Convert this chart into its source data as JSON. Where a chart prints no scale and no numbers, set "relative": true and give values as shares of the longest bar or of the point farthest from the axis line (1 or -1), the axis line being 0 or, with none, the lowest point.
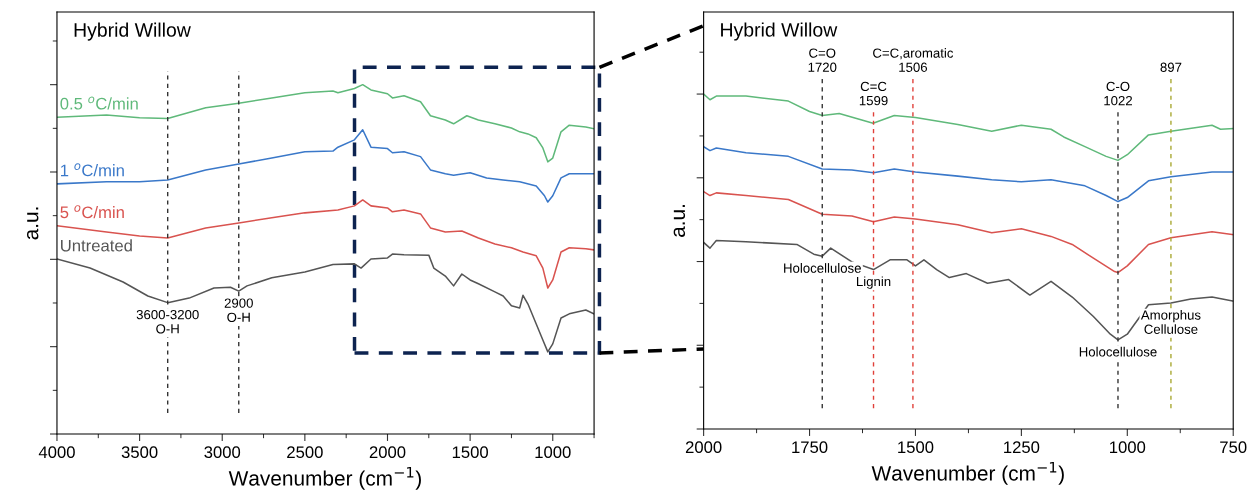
{
  "chart_data": [
    {
      "type": "line",
      "title": "Hybrid Willow",
      "xlabel": "Wavenumber (cm$^{−1}$)",
      "ylabel": "a.u.",
      "relative": true,
      "tick_labels": "x",
      "xlim": [
        4000,
        750
      ],
      "xticks": [
        4000,
        3500,
        3000,
        2500,
        2000,
        1500,
        1000
      ],
      "series": [
        {
          "name": "0.5 $^{o}$C/min",
          "color": "#5fb97a",
          "x": [
            4000,
            3700,
            3500,
            3330,
            3100,
            2900,
            2700,
            2500,
            2330,
            2300,
            2200,
            2150,
            2100,
            2000,
            1970,
            1900,
            1800,
            1740,
            1650,
            1600,
            1520,
            1450,
            1350,
            1250,
            1200,
            1150,
            1100,
            1060,
            1030,
            1000,
            950,
            900,
            800,
            750
          ],
          "values": [
            0.907,
            0.913,
            0.905,
            0.903,
            0.934,
            0.947,
            0.962,
            0.977,
            0.982,
            0.977,
            0.989,
            1.0,
            0.985,
            0.974,
            0.962,
            0.968,
            0.951,
            0.911,
            0.899,
            0.888,
            0.911,
            0.899,
            0.888,
            0.876,
            0.865,
            0.859,
            0.848,
            0.819,
            0.779,
            0.79,
            0.865,
            0.884,
            0.879,
            0.874
          ]
        },
        {
          "name": "1 $^{o}$C/min",
          "color": "#3a78c9",
          "x": [
            4000,
            3700,
            3500,
            3330,
            3100,
            2900,
            2700,
            2500,
            2330,
            2300,
            2200,
            2150,
            2100,
            2000,
            1970,
            1900,
            1800,
            1740,
            1650,
            1600,
            1500,
            1400,
            1300,
            1200,
            1100,
            1050,
            1030,
            1000,
            950,
            900,
            750
          ],
          "values": [
            0.716,
            0.722,
            0.722,
            0.727,
            0.756,
            0.773,
            0.79,
            0.808,
            0.81,
            0.821,
            0.842,
            0.871,
            0.821,
            0.817,
            0.805,
            0.808,
            0.794,
            0.756,
            0.745,
            0.741,
            0.748,
            0.733,
            0.727,
            0.722,
            0.71,
            0.682,
            0.664,
            0.682,
            0.733,
            0.745,
            0.745
          ]
        },
        {
          "name": "5 $^{o}$C/min",
          "color": "#d9534f",
          "x": [
            4000,
            3700,
            3500,
            3330,
            3100,
            2900,
            2700,
            2500,
            2300,
            2200,
            2150,
            2100,
            2000,
            1970,
            1900,
            1800,
            1740,
            1650,
            1550,
            1450,
            1350,
            1250,
            1180,
            1100,
            1060,
            1030,
            1000,
            950,
            900,
            800,
            750
          ],
          "values": [
            0.596,
            0.578,
            0.567,
            0.561,
            0.59,
            0.604,
            0.619,
            0.633,
            0.641,
            0.653,
            0.67,
            0.653,
            0.647,
            0.636,
            0.641,
            0.63,
            0.59,
            0.578,
            0.581,
            0.561,
            0.544,
            0.533,
            0.521,
            0.51,
            0.475,
            0.418,
            0.441,
            0.521,
            0.533,
            0.53,
            0.527
          ]
        },
        {
          "name": "Untreated",
          "color": "#555555",
          "x": [
            4000,
            3800,
            3600,
            3450,
            3330,
            3200,
            3050,
            2950,
            2900,
            2850,
            2700,
            2500,
            2330,
            2200,
            2160,
            2100,
            2000,
            1970,
            1900,
            1750,
            1720,
            1650,
            1600,
            1550,
            1500,
            1450,
            1350,
            1300,
            1250,
            1200,
            1180,
            1150,
            1100,
            1060,
            1030,
            1000,
            950,
            900,
            800,
            750
          ],
          "values": [
            0.501,
            0.475,
            0.435,
            0.395,
            0.376,
            0.389,
            0.418,
            0.42,
            0.409,
            0.424,
            0.447,
            0.464,
            0.485,
            0.487,
            0.475,
            0.501,
            0.504,
            0.515,
            0.513,
            0.512,
            0.475,
            0.452,
            0.424,
            0.458,
            0.441,
            0.43,
            0.407,
            0.395,
            0.367,
            0.361,
            0.397,
            0.372,
            0.315,
            0.269,
            0.235,
            0.258,
            0.332,
            0.344,
            0.355,
            0.344
          ]
        }
      ],
      "ref_lines": [
        {
          "axis": "x",
          "value": 3330,
          "color": "#333333",
          "line_style": "dashed"
        },
        {
          "axis": "x",
          "value": 2900,
          "color": "#333333",
          "line_style": "dashed"
        }
      ],
      "annotations": [
        {
          "text": "3600-3200\nO-H",
          "x": 3330,
          "y": 0.376
        },
        {
          "text": "2900\nO-H",
          "x": 2900,
          "y": 0.409
        }
      ]
    },
    {
      "type": "line",
      "title": "Hybrid Willow",
      "xlabel": "Wavenumber (cm$^{−1}$)",
      "ylabel": "a.u.",
      "relative": true,
      "tick_labels": "x",
      "xlim": [
        2000,
        750
      ],
      "xticks": [
        2000,
        1750,
        1500,
        1250,
        1000,
        750
      ],
      "series": [
        {
          "color": "#5fb97a",
          "x": [
            2000,
            1985,
            1970,
            1900,
            1800,
            1750,
            1720,
            1680,
            1600,
            1550,
            1500,
            1400,
            1320,
            1250,
            1180,
            1150,
            1100,
            1050,
            1022,
            1000,
            950,
            897,
            800,
            780,
            750
          ],
          "values": [
            1.0,
            0.983,
            0.994,
            0.994,
            0.979,
            0.948,
            0.936,
            0.942,
            0.913,
            0.936,
            0.93,
            0.909,
            0.889,
            0.907,
            0.895,
            0.872,
            0.843,
            0.814,
            0.802,
            0.819,
            0.878,
            0.889,
            0.907,
            0.895,
            0.897
          ]
        },
        {
          "color": "#3a78c9",
          "x": [
            2000,
            1985,
            1970,
            1900,
            1800,
            1720,
            1650,
            1599,
            1550,
            1500,
            1400,
            1320,
            1250,
            1180,
            1100,
            1050,
            1022,
            1000,
            950,
            897,
            800,
            750
          ],
          "values": [
            0.843,
            0.831,
            0.839,
            0.825,
            0.814,
            0.776,
            0.773,
            0.765,
            0.776,
            0.767,
            0.755,
            0.744,
            0.738,
            0.744,
            0.726,
            0.697,
            0.679,
            0.691,
            0.741,
            0.753,
            0.767,
            0.767
          ]
        },
        {
          "color": "#d9534f",
          "x": [
            2000,
            1985,
            1970,
            1900,
            1800,
            1720,
            1650,
            1599,
            1550,
            1500,
            1400,
            1320,
            1250,
            1180,
            1130,
            1080,
            1030,
            1022,
            1000,
            950,
            897,
            800,
            750
          ],
          "values": [
            0.709,
            0.697,
            0.705,
            0.697,
            0.685,
            0.641,
            0.636,
            0.619,
            0.633,
            0.627,
            0.61,
            0.586,
            0.598,
            0.575,
            0.551,
            0.51,
            0.47,
            0.467,
            0.487,
            0.551,
            0.571,
            0.589,
            0.58
          ]
        },
        {
          "color": "#555555",
          "x": [
            2000,
            1985,
            1970,
            1900,
            1780,
            1740,
            1720,
            1700,
            1650,
            1599,
            1560,
            1520,
            1500,
            1480,
            1450,
            1420,
            1380,
            1330,
            1280,
            1230,
            1180,
            1130,
            1080,
            1040,
            1022,
            1000,
            950,
            897,
            850,
            800,
            750
          ],
          "values": [
            0.557,
            0.54,
            0.563,
            0.559,
            0.551,
            0.522,
            0.516,
            0.54,
            0.499,
            0.476,
            0.505,
            0.505,
            0.487,
            0.505,
            0.476,
            0.452,
            0.464,
            0.435,
            0.446,
            0.4,
            0.441,
            0.394,
            0.336,
            0.283,
            0.266,
            0.283,
            0.371,
            0.376,
            0.388,
            0.394,
            0.382
          ]
        }
      ],
      "ref_lines": [
        {
          "axis": "x",
          "value": 1720,
          "label": "C=O\n1720",
          "color": "#333333",
          "line_style": "dashed"
        },
        {
          "axis": "x",
          "value": 1599,
          "label": "C=C\n1599",
          "color": "#e0403a",
          "line_style": "dashed"
        },
        {
          "axis": "x",
          "value": 1506,
          "label": "C=C,aromatic\n1506",
          "color": "#e0403a",
          "line_style": "dashed"
        },
        {
          "axis": "x",
          "value": 1022,
          "label": "C-O\n1022",
          "color": "#333333",
          "line_style": "dashed"
        },
        {
          "axis": "x",
          "value": 897,
          "label": "897",
          "color": "#a8a832",
          "line_style": "dashed"
        }
      ],
      "annotations": [
        {
          "text": "Holocellulose",
          "x": 1720,
          "y": 0.516
        },
        {
          "text": "Lignin",
          "x": 1599,
          "y": 0.476
        },
        {
          "text": "Holocellulose",
          "x": 1022,
          "y": 0.266
        },
        {
          "text": "Amorphus\nCellulose",
          "x": 897,
          "y": 0.376
        }
      ]
    }
  ]
}
